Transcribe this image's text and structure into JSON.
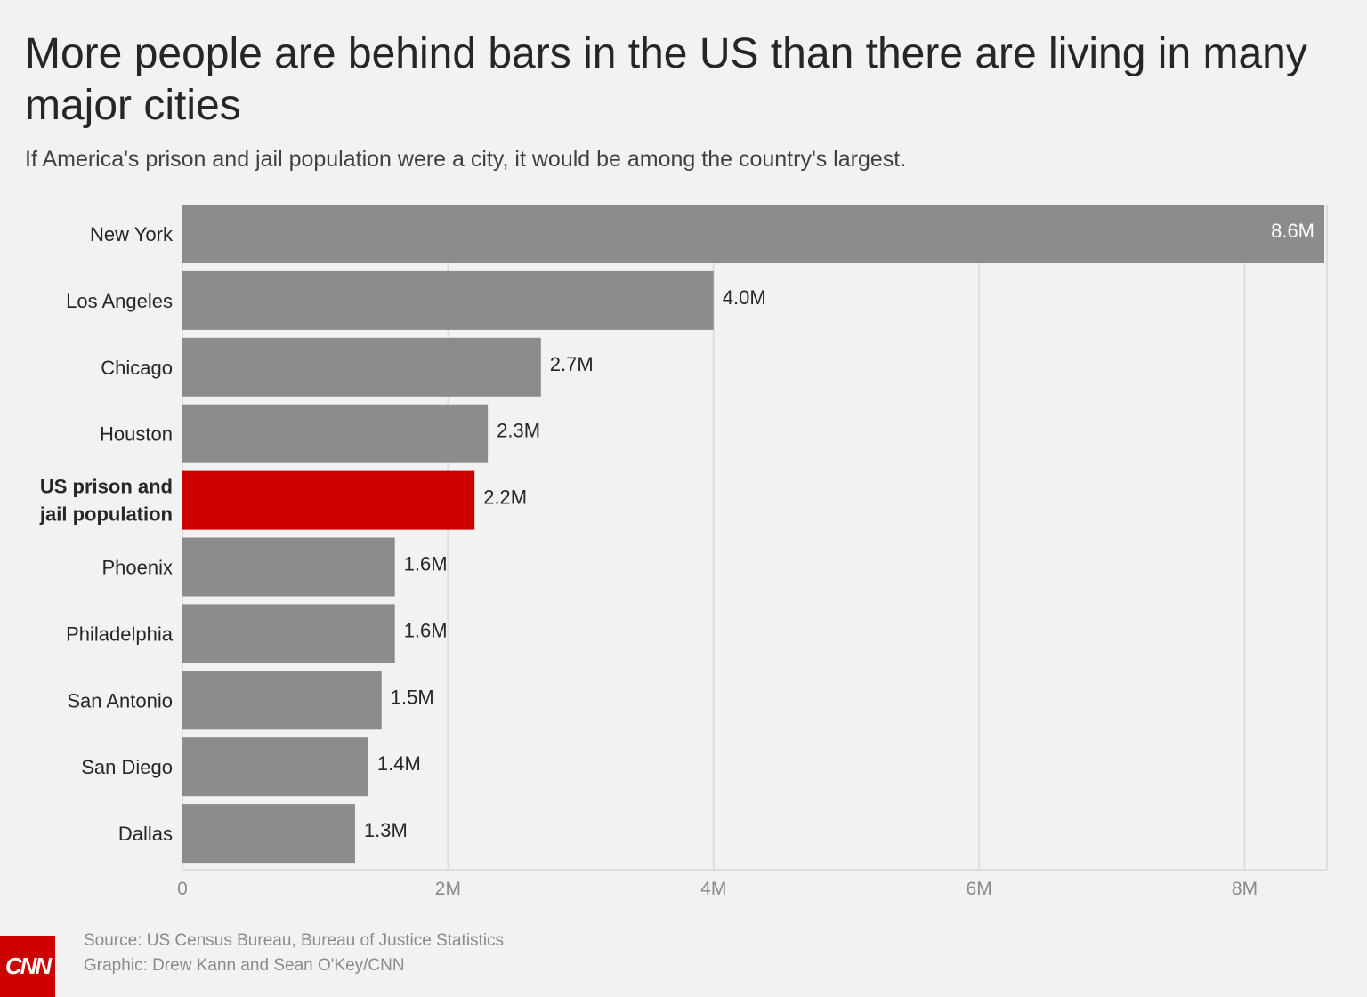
{
  "header": {
    "title": "More people are behind bars in the US than there are living in many major cities",
    "subtitle": "If America's prison and jail population were a city, it would be among the country's largest."
  },
  "chart_data": {
    "type": "bar",
    "orientation": "horizontal",
    "categories": [
      "New York",
      "Los Angeles",
      "Chicago",
      "Houston",
      "US prison and jail population",
      "Phoenix",
      "Philadelphia",
      "San Antonio",
      "San Diego",
      "Dallas"
    ],
    "values": [
      8.6,
      4.0,
      2.7,
      2.3,
      2.2,
      1.6,
      1.6,
      1.5,
      1.4,
      1.3
    ],
    "data_labels": [
      "8.6M",
      "4.0M",
      "2.7M",
      "2.3M",
      "2.2M",
      "1.6M",
      "1.6M",
      "1.5M",
      "1.4M",
      "1.3M"
    ],
    "highlight_index": 4,
    "xticks": [
      0,
      2,
      4,
      6,
      8
    ],
    "xtick_labels": [
      "0",
      "2M",
      "4M",
      "6M",
      "8M"
    ],
    "xlim": [
      0,
      8.62
    ],
    "grid": true,
    "colors": {
      "bar": "#8c8c8c",
      "highlight": "#cc0000",
      "grid": "#dddddd"
    }
  },
  "footer": {
    "source": "Source: US Census Bureau, Bureau of Justice Statistics",
    "credit": "Graphic: Drew Kann and Sean O'Key/CNN",
    "logo_text": "CNN"
  }
}
